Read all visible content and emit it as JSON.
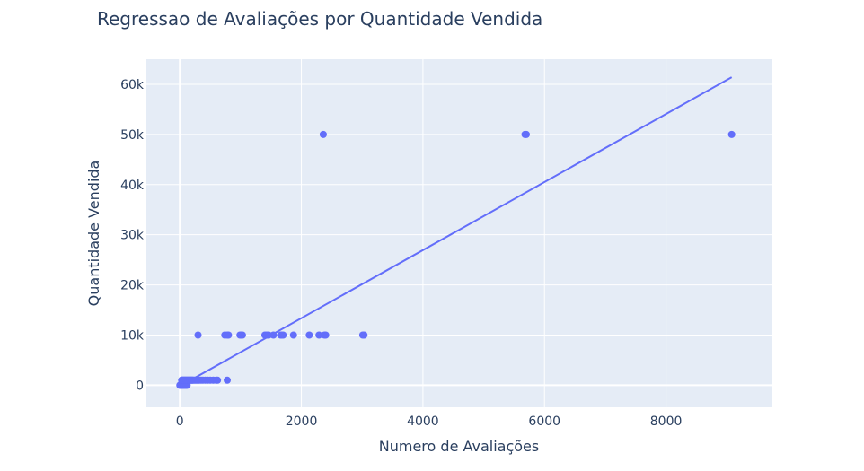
{
  "chart_data": {
    "type": "scatter",
    "title": "Regressao de Avaliações por Quantidade Vendida",
    "xlabel": "Numero de Avaliações",
    "ylabel": "Quantidade Vendida",
    "xlim": [
      -550,
      9750
    ],
    "ylim": [
      -4400,
      65000
    ],
    "x_ticks": [
      0,
      2000,
      4000,
      6000,
      8000
    ],
    "x_tick_labels": [
      "0",
      "2000",
      "4000",
      "6000",
      "8000"
    ],
    "y_ticks": [
      0,
      10000,
      20000,
      30000,
      40000,
      50000,
      60000
    ],
    "y_tick_labels": [
      "0",
      "10k",
      "20k",
      "30k",
      "40k",
      "50k",
      "60k"
    ],
    "grid": true,
    "colors": {
      "background": "#e5ecf6",
      "grid": "#ffffff",
      "series": "#636efa",
      "text": "#2a3f5f"
    },
    "series": [
      {
        "mode": "markers",
        "x": [
          0,
          5,
          10,
          15,
          20,
          25,
          30,
          35,
          40,
          45,
          50,
          55,
          60,
          70,
          80,
          90,
          100,
          110,
          120,
          30,
          40,
          50,
          60,
          70,
          80,
          90,
          100,
          110,
          120,
          130,
          140,
          150,
          160,
          170,
          180,
          190,
          200,
          210,
          220,
          240,
          260,
          280,
          300,
          320,
          350,
          380,
          420,
          460,
          500,
          550,
          600,
          620,
          780,
          300,
          740,
          780,
          800,
          990,
          1010,
          1030,
          1400,
          1430,
          1460,
          1540,
          1660,
          1680,
          1700,
          1870,
          2130,
          2290,
          2380,
          2400,
          3010,
          3030,
          2360,
          5680,
          5700,
          9080
        ],
        "y": [
          0,
          0,
          0,
          0,
          0,
          0,
          0,
          0,
          0,
          0,
          0,
          0,
          0,
          0,
          0,
          0,
          0,
          0,
          0,
          1000,
          1000,
          1000,
          1000,
          1000,
          1000,
          1000,
          1000,
          1000,
          1000,
          1000,
          1000,
          1000,
          1000,
          1000,
          1000,
          1000,
          1000,
          1000,
          1000,
          1000,
          1000,
          1000,
          1000,
          1000,
          1000,
          1000,
          1000,
          1000,
          1000,
          1000,
          1000,
          1000,
          1000,
          10000,
          10000,
          10000,
          10000,
          10000,
          10000,
          10000,
          10000,
          10000,
          10000,
          10000,
          10000,
          10000,
          10000,
          10000,
          10000,
          10000,
          10000,
          10000,
          10000,
          10000,
          50000,
          50000,
          50000,
          50000
        ]
      },
      {
        "mode": "lines",
        "x": [
          0,
          9080
        ],
        "y": [
          -200,
          61400
        ]
      }
    ]
  }
}
